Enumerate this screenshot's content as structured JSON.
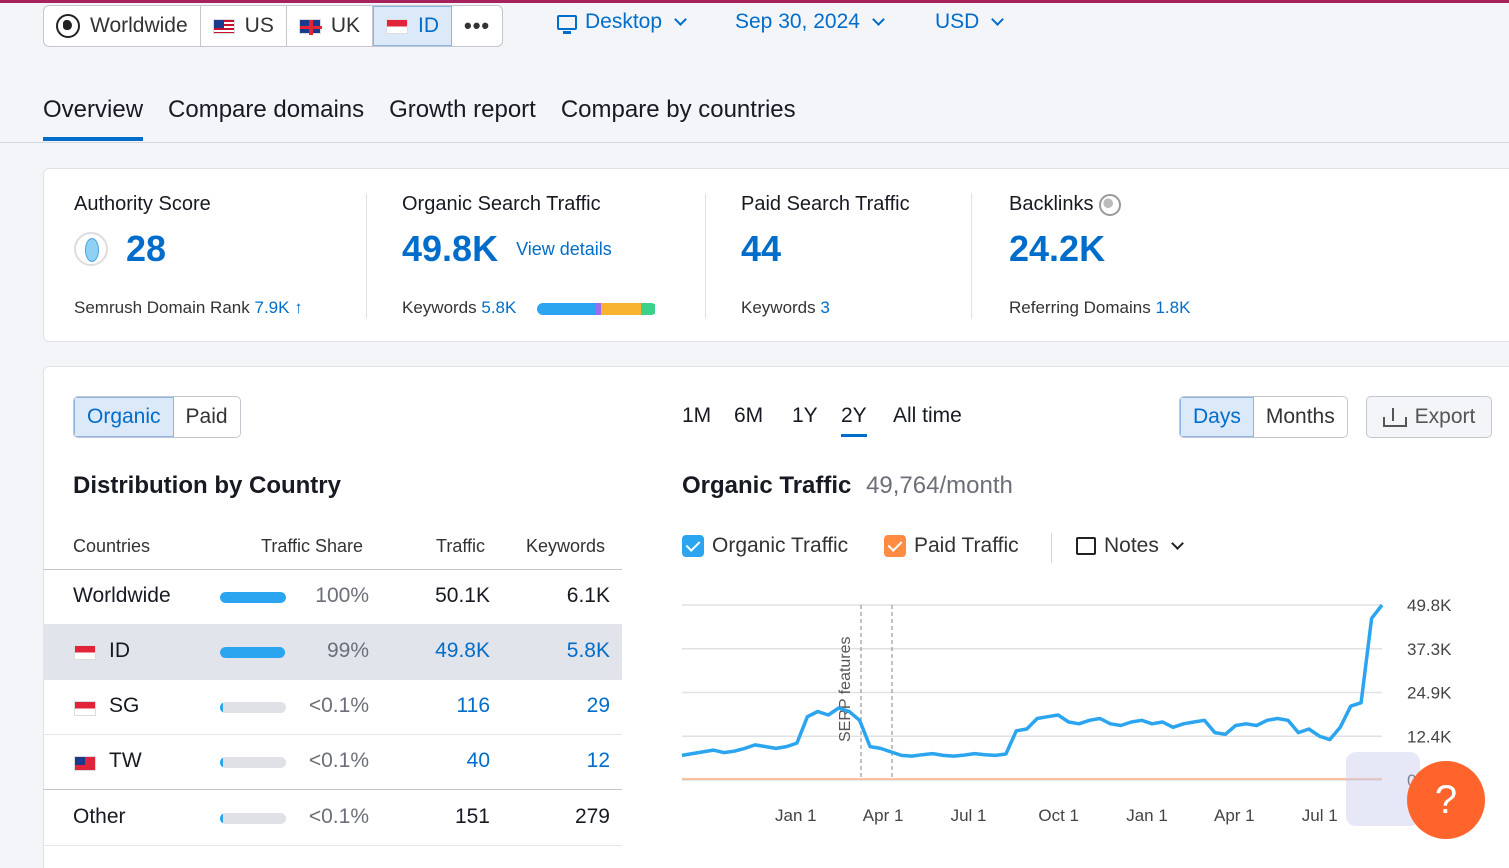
{
  "databases": [
    {
      "label": "Worldwide",
      "icon": "globe-icon",
      "active": false
    },
    {
      "label": "US",
      "icon": "us-flag-icon",
      "active": false
    },
    {
      "label": "UK",
      "icon": "uk-flag-icon",
      "active": false
    },
    {
      "label": "ID",
      "icon": "id-flag-icon",
      "active": true
    }
  ],
  "selectors": {
    "device": "Desktop",
    "date": "Sep 30, 2024",
    "currency": "USD"
  },
  "tabs": [
    "Overview",
    "Compare domains",
    "Growth report",
    "Compare by countries"
  ],
  "metrics": {
    "authority": {
      "label": "Authority Score",
      "value": "28",
      "sub_label": "Semrush Domain Rank",
      "sub_value": "7.9K",
      "trend": "↑"
    },
    "organic": {
      "label": "Organic Search Traffic",
      "value": "49.8K",
      "link": "View details",
      "sub_label": "Keywords",
      "sub_value": "5.8K"
    },
    "paid": {
      "label": "Paid Search Traffic",
      "value": "44",
      "sub_label": "Keywords",
      "sub_value": "3"
    },
    "backlinks": {
      "label": "Backlinks",
      "value": "24.2K",
      "sub_label": "Referring Domains",
      "sub_value": "1.8K"
    }
  },
  "traffic_type": {
    "organic": "Organic",
    "paid": "Paid"
  },
  "distribution": {
    "title": "Distribution by Country",
    "headers": {
      "countries": "Countries",
      "share": "Traffic Share",
      "traffic": "Traffic",
      "keywords": "Keywords"
    },
    "rows": [
      {
        "country": "Worldwide",
        "share": "100%",
        "share_fraction": 1.0,
        "traffic": "50.1K",
        "keywords": "6.1K"
      },
      {
        "country": "ID",
        "share": "99%",
        "share_fraction": 0.99,
        "traffic": "49.8K",
        "keywords": "5.8K"
      },
      {
        "country": "SG",
        "share": "<0.1%",
        "share_fraction": 0.0,
        "traffic": "116",
        "keywords": "29"
      },
      {
        "country": "TW",
        "share": "<0.1%",
        "share_fraction": 0.0,
        "traffic": "40",
        "keywords": "12"
      },
      {
        "country": "Other",
        "share": "<0.1%",
        "share_fraction": 0.0,
        "traffic": "151",
        "keywords": "279"
      }
    ]
  },
  "periods": [
    "1M",
    "6M",
    "1Y",
    "2Y",
    "All time"
  ],
  "granularity": {
    "days": "Days",
    "months": "Months"
  },
  "export_label": "Export",
  "chart_header": {
    "title": "Organic Traffic",
    "value": "49,764/month"
  },
  "legend": {
    "organic": "Organic Traffic",
    "paid": "Paid Traffic",
    "notes": "Notes"
  },
  "colors": {
    "accent": "#006dca",
    "organic": "#2ba5ef",
    "paid": "#ff8c42",
    "help": "#ff642d"
  },
  "chart_data": {
    "type": "line",
    "title": "Organic Traffic",
    "ylim": [
      0,
      49800
    ],
    "y_ticks": [
      "49.8K",
      "37.3K",
      "24.9K",
      "12.4K",
      "0"
    ],
    "x_ticks": [
      "Jan 1",
      "Apr 1",
      "Jul 1",
      "Oct 1",
      "Jan 1",
      "Apr 1",
      "Jul 1"
    ],
    "annotation": "SERP features",
    "series": [
      {
        "name": "Organic Traffic",
        "values": [
          7000,
          7500,
          8000,
          8500,
          7800,
          8200,
          9000,
          10000,
          9500,
          9000,
          9500,
          10500,
          18000,
          19500,
          18500,
          20500,
          19500,
          17000,
          9500,
          9000,
          8000,
          7000,
          6800,
          7200,
          7500,
          7000,
          6800,
          7100,
          7500,
          7200,
          7000,
          7400,
          14000,
          14500,
          17500,
          18000,
          18500,
          16500,
          16000,
          17000,
          17500,
          16000,
          15500,
          16500,
          17000,
          16000,
          16500,
          15000,
          16000,
          16500,
          17000,
          13500,
          13000,
          15500,
          16000,
          15500,
          17000,
          17500,
          17000,
          13500,
          14500,
          12500,
          11500,
          15000,
          21000,
          22000,
          46000,
          49800
        ]
      },
      {
        "name": "Paid Traffic",
        "values": [
          300,
          300,
          300,
          300,
          300,
          300,
          300,
          300,
          300,
          300,
          300,
          300,
          300,
          300,
          300,
          300,
          300,
          300,
          300,
          300,
          300,
          300,
          300,
          300,
          300,
          300,
          300,
          300,
          300,
          300,
          300,
          300,
          300,
          300,
          300,
          300,
          300,
          300,
          300,
          300,
          300,
          300,
          300,
          300,
          300,
          300,
          300,
          300,
          300,
          300,
          300,
          300,
          300,
          300,
          300,
          300,
          300,
          300,
          300,
          300,
          300,
          300,
          300,
          300,
          300,
          300,
          300,
          300
        ]
      }
    ]
  }
}
